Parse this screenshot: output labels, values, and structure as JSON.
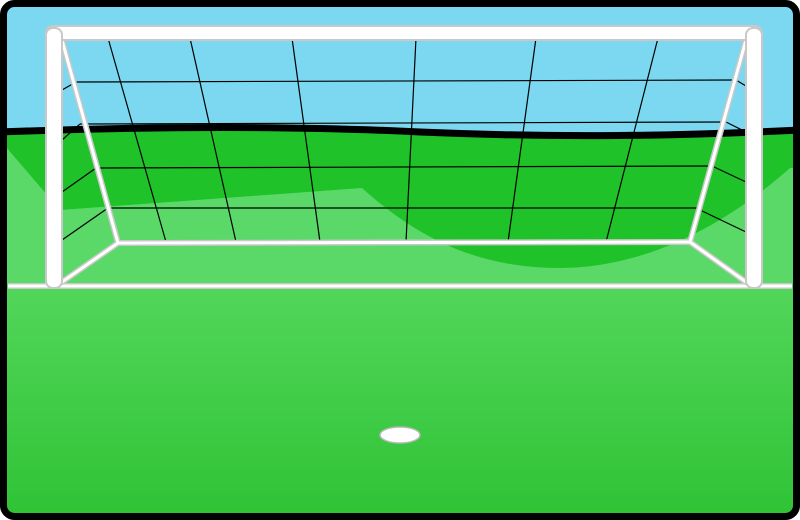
{
  "scene": {
    "type": "soccer-penalty-view",
    "elements": {
      "sky": "sky-background",
      "hills": "hills-background",
      "pitch": "grass-pitch",
      "goal": "goal-frame",
      "net": "goal-net",
      "goal_line": "goal-line",
      "penalty_spot": "penalty-spot"
    }
  },
  "colors": {
    "frame_border": "#000000",
    "sky": "#7bd8f0",
    "hill_dark": "#20c22a",
    "hill_light": "#5ad868",
    "pitch_top": "#52d65a",
    "pitch_bottom": "#2ec234",
    "goal_post": "#ffffff",
    "goal_post_outline": "#c8c8c8",
    "net_line": "#000000",
    "goal_line": "#ffffff",
    "penalty_spot": "#ffffff"
  }
}
